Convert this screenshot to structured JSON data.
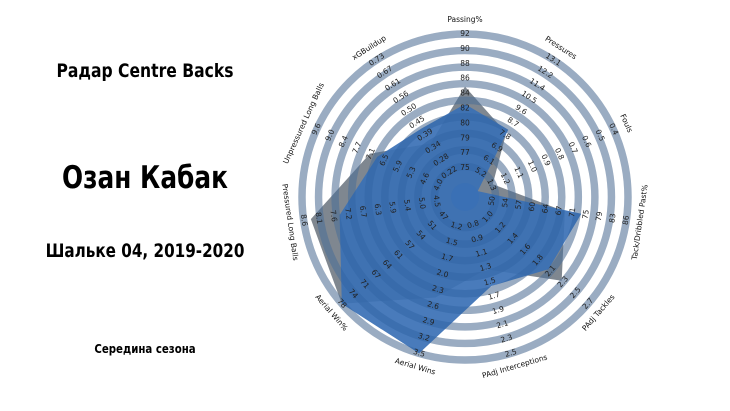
{
  "header": {
    "radar_title": "Радар Centre Backs",
    "player_name": "Озан Кабак",
    "team_season": "Шальке 04, 2019-2020",
    "period": "Середина сезона"
  },
  "chart_data": {
    "type": "radar",
    "colors": {
      "player_fill": "#3a70b5",
      "average_fill": "#7f8790",
      "rings": "#d6d6d6"
    },
    "axes": [
      {
        "name": "Passing%",
        "ticks": [
          "75",
          "77",
          "79",
          "80",
          "82",
          "84",
          "86",
          "88",
          "90",
          "92"
        ],
        "value": 84,
        "range": [
          75,
          92
        ]
      },
      {
        "name": "Pressures",
        "ticks": [
          "5.2",
          "6.1",
          "6.9",
          "7.8",
          "8.7",
          "9.6",
          "10.5",
          "11.4",
          "12.2",
          "13.1"
        ],
        "value": 8.7,
        "range": [
          5.2,
          13.1
        ]
      },
      {
        "name": "Fouls",
        "ticks": [
          "1.3",
          "1.2",
          "1.1",
          "1.0",
          "0.9",
          "0.8",
          "0.7",
          "0.6",
          "0.5",
          "0.4"
        ],
        "value": 1.3,
        "range": [
          1.3,
          0.4
        ]
      },
      {
        "name": "Tack/Dribbled Past%",
        "ticks": [
          "50",
          "54",
          "57",
          "60",
          "64",
          "67",
          "71",
          "75",
          "79",
          "83",
          "86"
        ],
        "value": 75,
        "range": [
          50,
          86
        ]
      },
      {
        "name": "PAdj Tackles",
        "ticks": [
          "1.0",
          "1.2",
          "1.4",
          "1.6",
          "1.8",
          "2.1",
          "2.3",
          "2.5",
          "2.7"
        ],
        "value": 2.1,
        "range": [
          1.0,
          2.7
        ]
      },
      {
        "name": "PAdj Interceptions",
        "ticks": [
          "0.8",
          "0.9",
          "1.1",
          "1.3",
          "1.5",
          "1.7",
          "1.9",
          "2.1",
          "2.3",
          "2.5"
        ],
        "value": 1.7,
        "range": [
          0.8,
          2.5
        ]
      },
      {
        "name": "Aerial Wins",
        "ticks": [
          "1.2",
          "1.5",
          "1.7",
          "2.0",
          "2.3",
          "2.6",
          "2.9",
          "3.2",
          "3.5"
        ],
        "value": 3.5,
        "range": [
          1.2,
          3.5
        ]
      },
      {
        "name": "Aerial Win%",
        "ticks": [
          "47",
          "51",
          "54",
          "57",
          "61",
          "64",
          "67",
          "71",
          "74",
          "78"
        ],
        "value": 78,
        "range": [
          47,
          78
        ]
      },
      {
        "name": "Pressured Long Balls",
        "ticks": [
          "4.5",
          "5.0",
          "5.4",
          "5.9",
          "6.3",
          "6.7",
          "7.2",
          "7.6",
          "8.1",
          "8.6"
        ],
        "value": 7.6,
        "range": [
          4.5,
          8.6
        ]
      },
      {
        "name": "Unpressured Long Balls",
        "ticks": [
          "4.0",
          "4.6",
          "5.3",
          "5.9",
          "6.5",
          "7.1",
          "7.7",
          "8.4",
          "9.0",
          "9.6"
        ],
        "value": 7.1,
        "range": [
          4.0,
          9.6
        ]
      },
      {
        "name": "xGBuildup",
        "ticks": [
          "0.22",
          "0.28",
          "0.34",
          "0.39",
          "0.45",
          "0.50",
          "0.56",
          "0.61",
          "0.67",
          "0.73"
        ],
        "value": 0.45,
        "range": [
          0.22,
          0.73
        ]
      }
    ],
    "average_polygon": [
      86,
      8.5,
      1.2,
      71,
      2.3,
      1.5,
      2.6,
      78,
      8.4,
      7.4,
      0.39
    ]
  }
}
